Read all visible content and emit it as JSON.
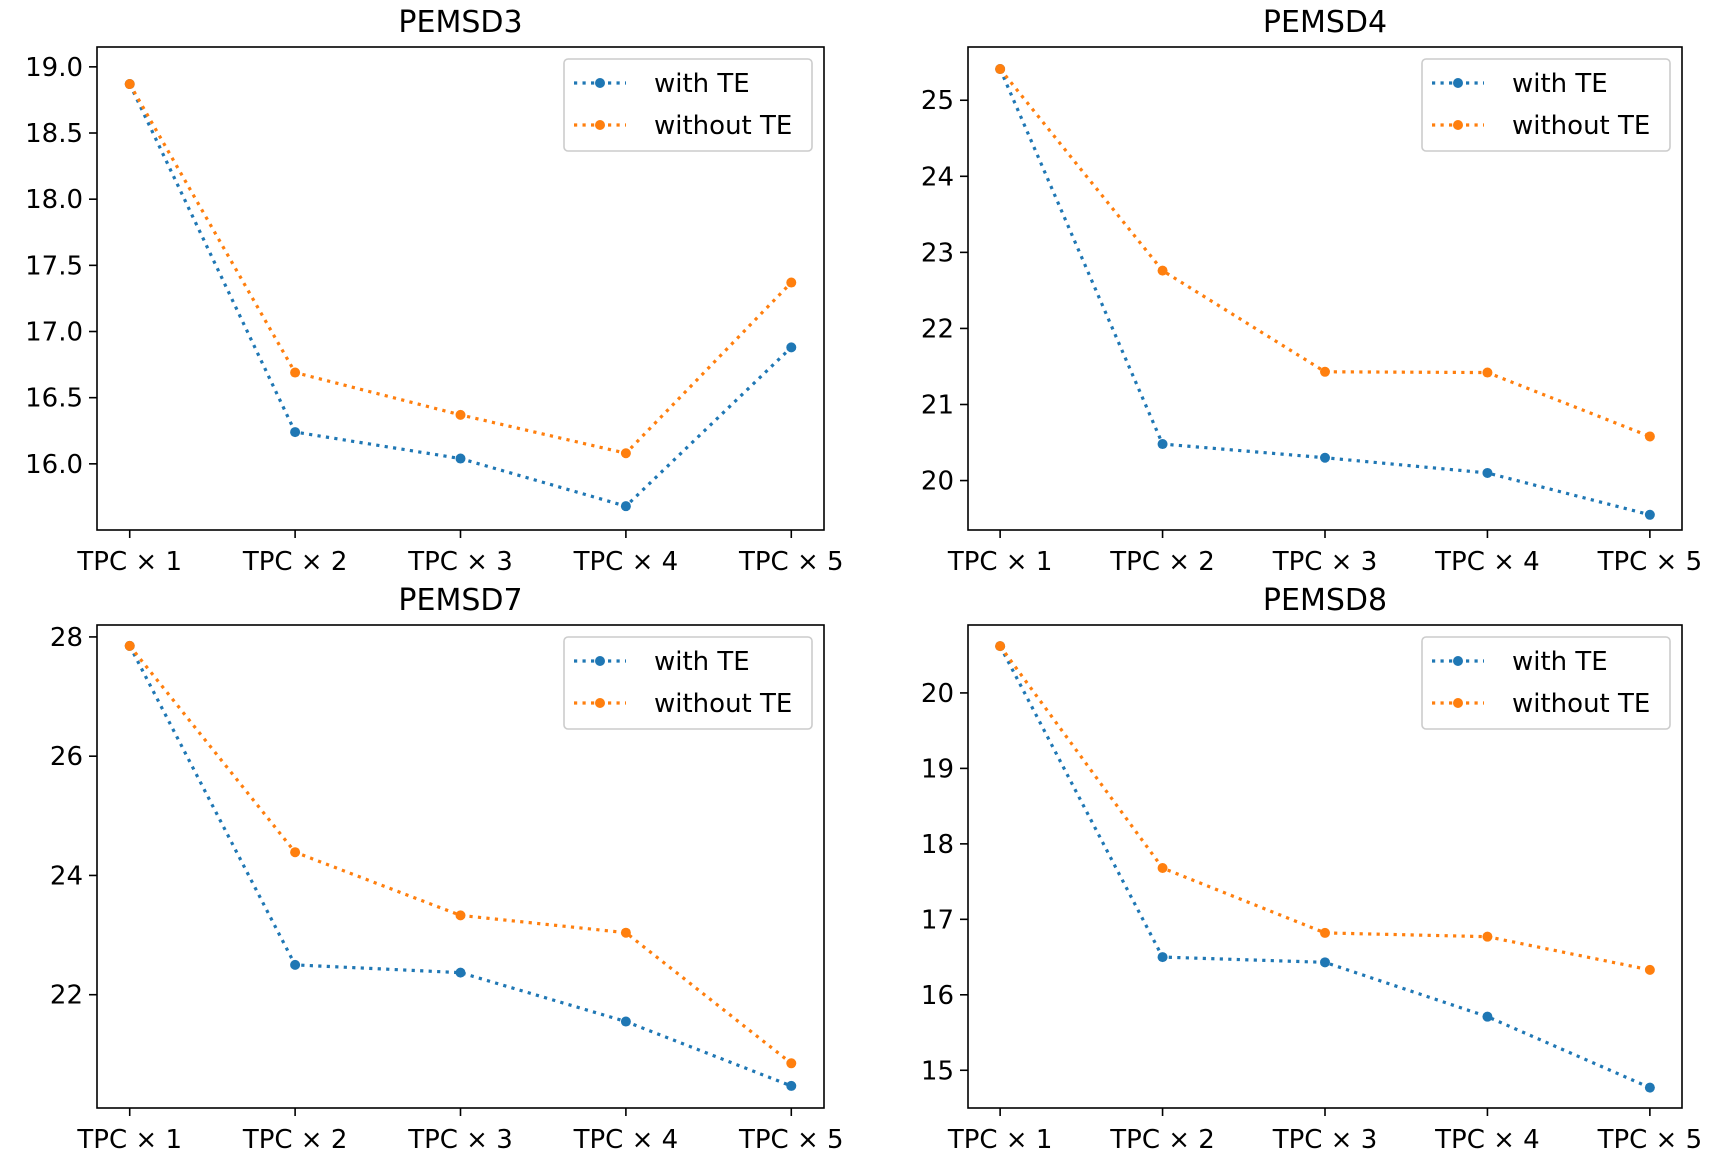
{
  "chart_data": [
    {
      "type": "line",
      "title": "PEMSD3",
      "categories": [
        "TPC × 1",
        "TPC × 2",
        "TPC × 3",
        "TPC × 4",
        "TPC × 5"
      ],
      "ylim": [
        15.5,
        19.15
      ],
      "yticks": [
        16.0,
        16.5,
        17.0,
        17.5,
        18.0,
        18.5,
        19.0
      ],
      "ytick_labels": [
        "16.0",
        "16.5",
        "17.0",
        "17.5",
        "18.0",
        "18.5",
        "19.0"
      ],
      "legend": "top-right",
      "grid": false,
      "series": [
        {
          "name": "with TE",
          "color": "#1f77b4",
          "values": [
            18.87,
            16.24,
            16.04,
            15.68,
            16.88
          ]
        },
        {
          "name": "without TE",
          "color": "#ff7f0e",
          "values": [
            18.87,
            16.69,
            16.37,
            16.08,
            17.37
          ]
        }
      ]
    },
    {
      "type": "line",
      "title": "PEMSD4",
      "categories": [
        "TPC × 1",
        "TPC × 2",
        "TPC × 3",
        "TPC × 4",
        "TPC × 5"
      ],
      "ylim": [
        19.35,
        25.7
      ],
      "yticks": [
        20,
        21,
        22,
        23,
        24,
        25
      ],
      "ytick_labels": [
        "20",
        "21",
        "22",
        "23",
        "24",
        "25"
      ],
      "legend": "top-right",
      "grid": false,
      "series": [
        {
          "name": "with TE",
          "color": "#1f77b4",
          "values": [
            25.41,
            20.48,
            20.3,
            20.1,
            19.55
          ]
        },
        {
          "name": "without TE",
          "color": "#ff7f0e",
          "values": [
            25.41,
            22.76,
            21.43,
            21.42,
            20.58
          ]
        }
      ]
    },
    {
      "type": "line",
      "title": "PEMSD7",
      "categories": [
        "TPC × 1",
        "TPC × 2",
        "TPC × 3",
        "TPC × 4",
        "TPC × 5"
      ],
      "ylim": [
        20.1,
        28.2
      ],
      "yticks": [
        22,
        24,
        26,
        28
      ],
      "ytick_labels": [
        "22",
        "24",
        "26",
        "28"
      ],
      "legend": "top-right",
      "grid": false,
      "series": [
        {
          "name": "with TE",
          "color": "#1f77b4",
          "values": [
            27.85,
            22.5,
            22.37,
            21.55,
            20.47
          ]
        },
        {
          "name": "without TE",
          "color": "#ff7f0e",
          "values": [
            27.85,
            24.39,
            23.33,
            23.04,
            20.85
          ]
        }
      ]
    },
    {
      "type": "line",
      "title": "PEMSD8",
      "categories": [
        "TPC × 1",
        "TPC × 2",
        "TPC × 3",
        "TPC × 4",
        "TPC × 5"
      ],
      "ylim": [
        14.5,
        20.9
      ],
      "yticks": [
        15,
        16,
        17,
        18,
        19,
        20
      ],
      "ytick_labels": [
        "15",
        "16",
        "17",
        "18",
        "19",
        "20"
      ],
      "legend": "top-right",
      "grid": false,
      "series": [
        {
          "name": "with TE",
          "color": "#1f77b4",
          "values": [
            20.62,
            16.5,
            16.43,
            15.71,
            14.77
          ]
        },
        {
          "name": "without TE",
          "color": "#ff7f0e",
          "values": [
            20.62,
            17.68,
            16.82,
            16.77,
            16.33
          ]
        }
      ]
    }
  ]
}
